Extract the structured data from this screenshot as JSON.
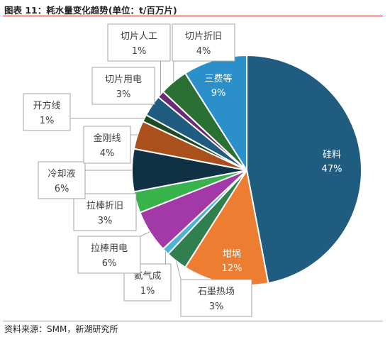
{
  "header": {
    "title": "图表 11：耗水量变化趋势(单位：t/百万片)"
  },
  "footer": {
    "source": "资料来源：SMM，新湖研究所"
  },
  "chart_data": {
    "type": "pie",
    "title": "",
    "slices": [
      {
        "name": "硅料",
        "value": 47,
        "label": "47%",
        "color": "#1f5c7f"
      },
      {
        "name": "坩埚",
        "value": 12,
        "label": "12%",
        "color": "#ed7d31"
      },
      {
        "name": "石墨热场",
        "value": 3,
        "label": "3%",
        "color": "#2f7f4f"
      },
      {
        "name": "氦气成",
        "value": 1,
        "label": "1%",
        "color": "#4db3d9"
      },
      {
        "name": "拉棒用电",
        "value": 6,
        "label": "6%",
        "color": "#a338a8"
      },
      {
        "name": "拉棒折旧",
        "value": 3,
        "label": "3%",
        "color": "#38b24a"
      },
      {
        "name": "冷却液",
        "value": 6,
        "label": "6%",
        "color": "#0f3143"
      },
      {
        "name": "金刚线",
        "value": 4,
        "label": "4%",
        "color": "#a9501c"
      },
      {
        "name": "开方线",
        "value": 1,
        "label": "1%",
        "color": "#1c4a25"
      },
      {
        "name": "切片用电",
        "value": 3,
        "label": "3%",
        "color": "#1f5c7f"
      },
      {
        "name": "切片人工",
        "value": 1,
        "label": "1%",
        "color": "#6b2a78"
      },
      {
        "name": "切片折旧",
        "value": 4,
        "label": "4%",
        "color": "#2a6f33"
      },
      {
        "name": "三费等",
        "value": 9,
        "label": "9%",
        "color": "#2b8fc9"
      }
    ],
    "legend": "none"
  }
}
